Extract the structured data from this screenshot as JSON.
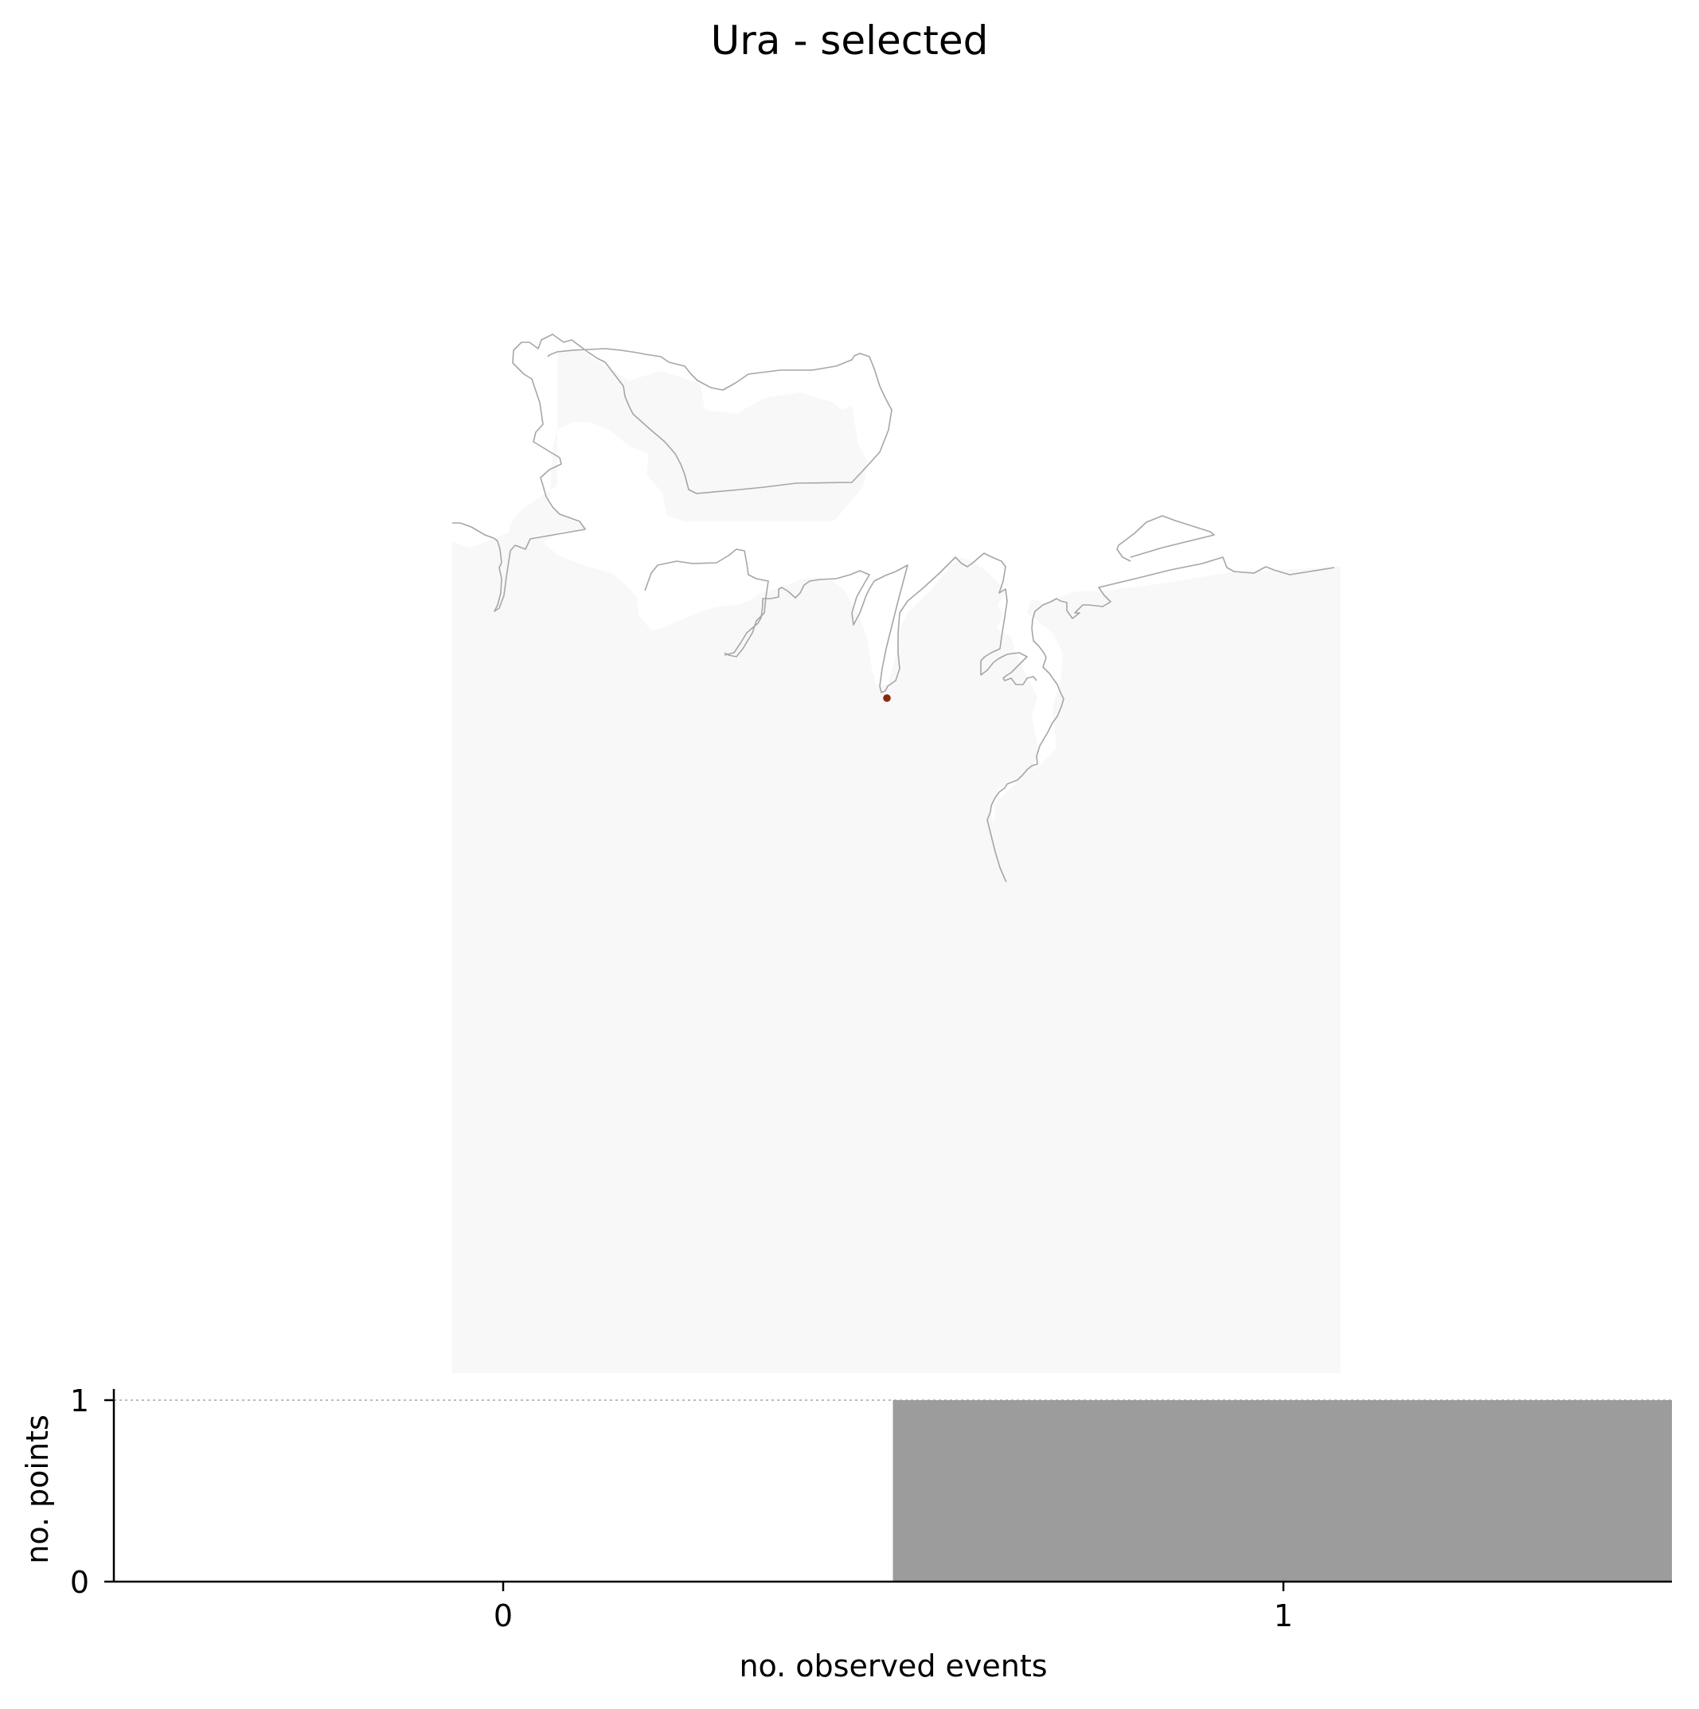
{
  "title": "Ura - selected",
  "colors": {
    "land_fill": "#f8f8f8",
    "coastline": "#a6a6a6",
    "station_point": "#8b2a10",
    "bar": "#9c9c9c",
    "axis": "#000000",
    "gridline": "#bbbbbb"
  },
  "map": {
    "region": "Ura",
    "selected_points": 1,
    "point_symbol": "selected-station-marker"
  },
  "chart_data": {
    "type": "bar",
    "title": "Ura - selected",
    "categories": [
      "0",
      "1"
    ],
    "x": [
      0,
      1
    ],
    "values": [
      0,
      1
    ],
    "xlabel": "no. observed events",
    "ylabel": "no. points",
    "xlim": [
      -0.5,
      1.5
    ],
    "ylim": [
      0,
      1
    ],
    "yticks": [
      "0",
      "1"
    ],
    "xticks": [
      "0",
      "1"
    ],
    "bar_width": 1,
    "reference_line_y": 1,
    "grid": false,
    "legend": "none"
  }
}
